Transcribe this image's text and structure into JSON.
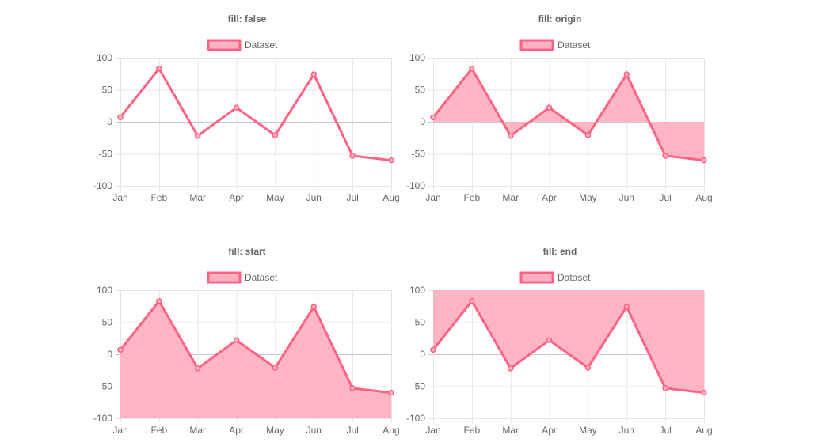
{
  "colors": {
    "line": "#ff6384",
    "fill": "#ffb1c1",
    "grid": "#e5e5e5",
    "zero_line": "#c8c8c8",
    "text": "#666666"
  },
  "chart_data": [
    {
      "type": "line",
      "title": "fill: false",
      "fill": "false",
      "legend": [
        "Dataset"
      ],
      "categories": [
        "Jan",
        "Feb",
        "Mar",
        "Apr",
        "May",
        "Jun",
        "Jul",
        "Aug"
      ],
      "series": [
        {
          "name": "Dataset",
          "values": [
            7,
            83,
            -22,
            22,
            -21,
            74,
            -53,
            -60
          ]
        }
      ],
      "y_ticks": [
        "100",
        "50",
        "0",
        "-50",
        "-100"
      ],
      "ylim": [
        -100,
        100
      ]
    },
    {
      "type": "line",
      "title": "fill: origin",
      "fill": "origin",
      "legend": [
        "Dataset"
      ],
      "categories": [
        "Jan",
        "Feb",
        "Mar",
        "Apr",
        "May",
        "Jun",
        "Jul",
        "Aug"
      ],
      "series": [
        {
          "name": "Dataset",
          "values": [
            7,
            83,
            -22,
            22,
            -21,
            74,
            -53,
            -60
          ]
        }
      ],
      "y_ticks": [
        "100",
        "50",
        "0",
        "-50",
        "-100"
      ],
      "ylim": [
        -100,
        100
      ]
    },
    {
      "type": "line",
      "title": "fill: start",
      "fill": "start",
      "legend": [
        "Dataset"
      ],
      "categories": [
        "Jan",
        "Feb",
        "Mar",
        "Apr",
        "May",
        "Jun",
        "Jul",
        "Aug"
      ],
      "series": [
        {
          "name": "Dataset",
          "values": [
            7,
            83,
            -22,
            22,
            -21,
            74,
            -53,
            -60
          ]
        }
      ],
      "y_ticks": [
        "100",
        "50",
        "0",
        "-50",
        "-100"
      ],
      "ylim": [
        -100,
        100
      ]
    },
    {
      "type": "line",
      "title": "fill: end",
      "fill": "end",
      "legend": [
        "Dataset"
      ],
      "categories": [
        "Jan",
        "Feb",
        "Mar",
        "Apr",
        "May",
        "Jun",
        "Jul",
        "Aug"
      ],
      "series": [
        {
          "name": "Dataset",
          "values": [
            7,
            83,
            -22,
            22,
            -21,
            74,
            -53,
            -60
          ]
        }
      ],
      "y_ticks": [
        "100",
        "50",
        "0",
        "-50",
        "-100"
      ],
      "ylim": [
        -100,
        100
      ]
    }
  ]
}
